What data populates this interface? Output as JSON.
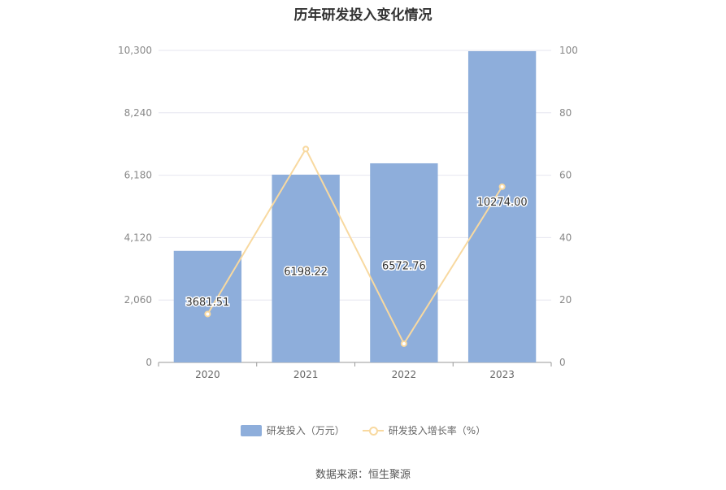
{
  "chart_data": {
    "type": "bar",
    "title": "历年研发投入变化情况",
    "categories": [
      "2020",
      "2021",
      "2022",
      "2023"
    ],
    "series": [
      {
        "name": "研发投入（万元）",
        "type": "bar",
        "axis": "left",
        "color": "#8eaedb",
        "values": [
          3681.51,
          6198.22,
          6572.76,
          10274.0
        ],
        "labels": [
          "3681.51",
          "6198.22",
          "6572.76",
          "10274.00"
        ]
      },
      {
        "name": "研发投入增长率（%）",
        "type": "line",
        "axis": "right",
        "color": "#f8d9a0",
        "values": [
          15.5,
          68.4,
          6.0,
          56.3
        ]
      }
    ],
    "y_left": {
      "min": 0,
      "max": 10300,
      "ticks": [
        "0",
        "2,060",
        "4,120",
        "6,180",
        "8,240",
        "10,300"
      ]
    },
    "y_right": {
      "min": 0,
      "max": 100,
      "ticks": [
        "0",
        "20",
        "40",
        "60",
        "80",
        "100"
      ]
    },
    "grid": true,
    "legend_position": "bottom"
  },
  "source": "数据来源：恒生聚源"
}
